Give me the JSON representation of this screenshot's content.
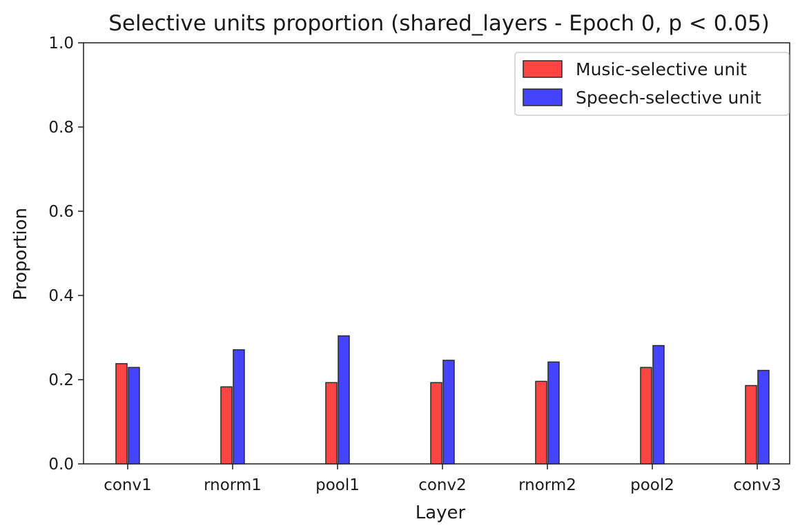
{
  "chart_data": {
    "type": "bar",
    "title": "Selective units proportion (shared_layers - Epoch 0, p < 0.05)",
    "xlabel": "Layer",
    "ylabel": "Proportion",
    "ylim": [
      0.0,
      1.0
    ],
    "yticks": [
      "0.0",
      "0.2",
      "0.4",
      "0.6",
      "0.8",
      "1.0"
    ],
    "categories": [
      "conv1",
      "rnorm1",
      "pool1",
      "conv2",
      "rnorm2",
      "pool2",
      "conv3"
    ],
    "series": [
      {
        "name": "Music-selective unit",
        "color": "#ff4444",
        "values": [
          0.238,
          0.183,
          0.193,
          0.193,
          0.196,
          0.229,
          0.186
        ]
      },
      {
        "name": "Speech-selective unit",
        "color": "#4444ff",
        "values": [
          0.229,
          0.271,
          0.304,
          0.246,
          0.242,
          0.281,
          0.222
        ]
      }
    ],
    "legend_position": "top-right",
    "grid": false
  }
}
